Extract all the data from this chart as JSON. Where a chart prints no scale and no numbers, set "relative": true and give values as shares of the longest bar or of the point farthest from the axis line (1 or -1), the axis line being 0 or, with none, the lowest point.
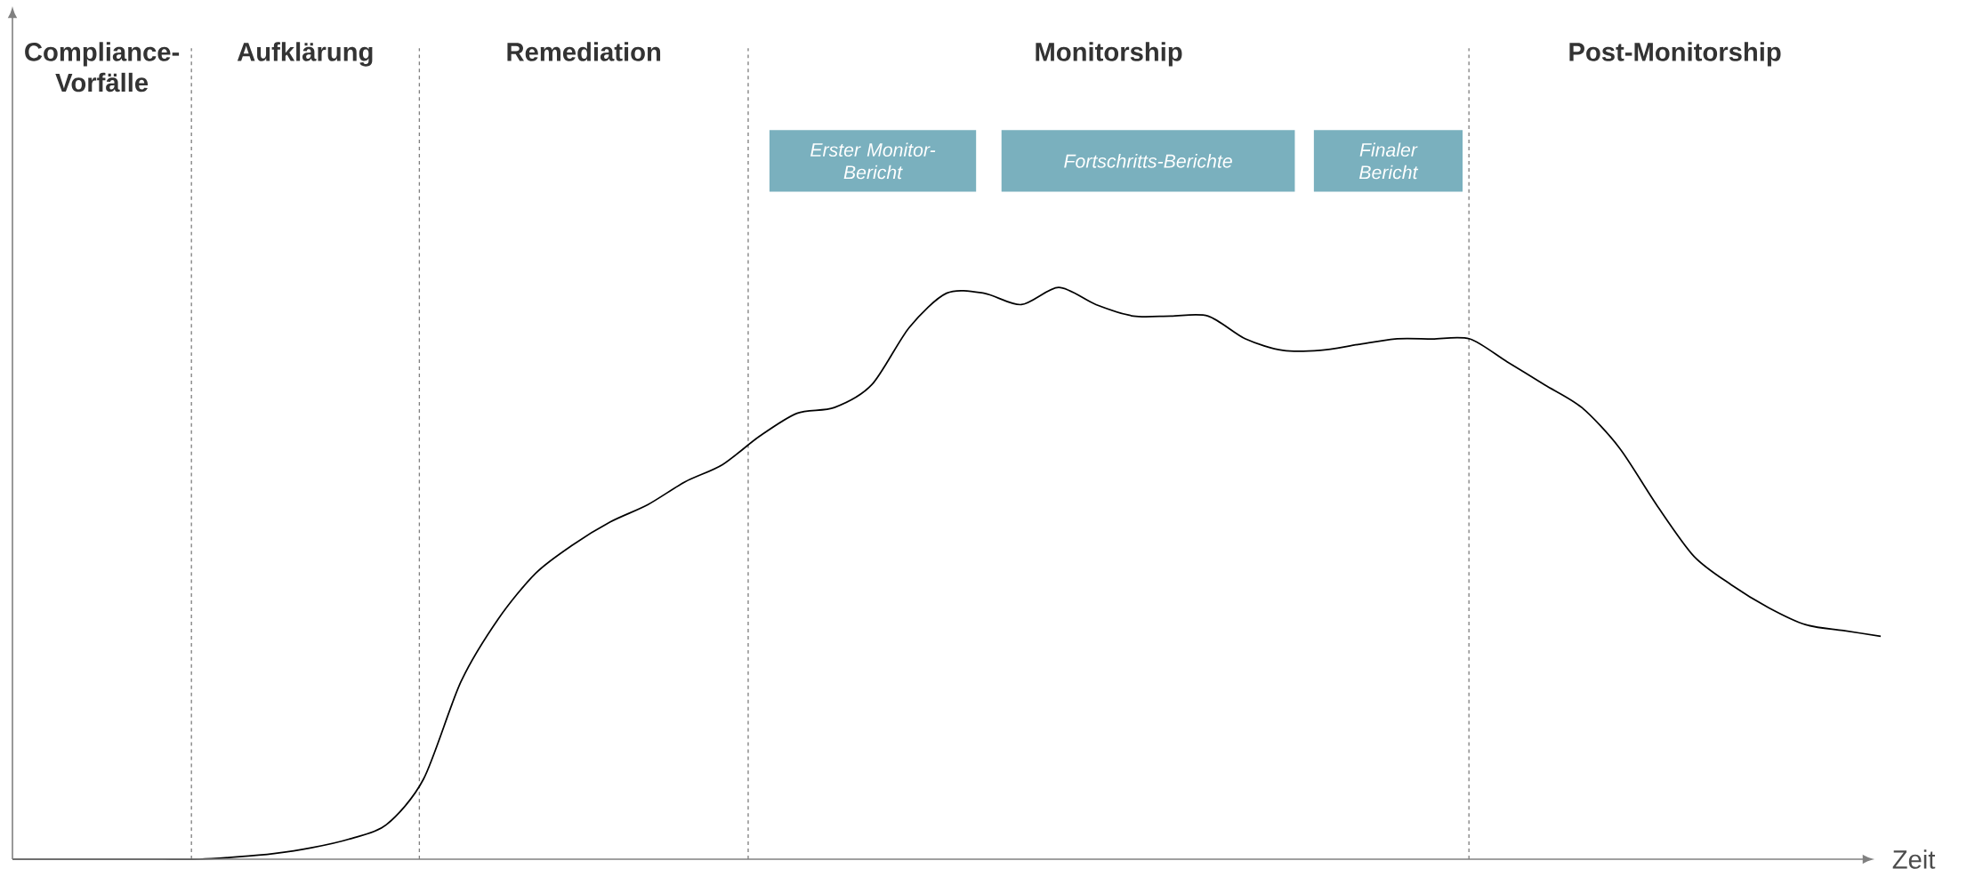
{
  "chart_data": {
    "type": "line",
    "relative": true,
    "xlabel": "Zeit",
    "categories": [
      null,
      null,
      null,
      null,
      null,
      null,
      null,
      null,
      null,
      null,
      null,
      null,
      null,
      null,
      null,
      null,
      null,
      null,
      null,
      null,
      null,
      null,
      null,
      null,
      null,
      null,
      null,
      null,
      null,
      null,
      null,
      null,
      null,
      null,
      null,
      null,
      null,
      null,
      null,
      null,
      null,
      null,
      null,
      null,
      null,
      null,
      null,
      null,
      null,
      null,
      null
    ],
    "series": [
      {
        "color": "#000000",
        "values": [
          0.0,
          0.0,
          0.0,
          0.0,
          0.0,
          0.0,
          0.004,
          0.01,
          0.02,
          0.035,
          0.06,
          0.14,
          0.31,
          0.42,
          0.5,
          0.55,
          0.59,
          0.62,
          0.66,
          0.69,
          0.74,
          0.78,
          0.79,
          0.83,
          0.93,
          0.99,
          0.99,
          0.97,
          1.0,
          0.97,
          0.95,
          0.95,
          0.95,
          0.91,
          0.89,
          0.89,
          0.9,
          0.91,
          0.91,
          0.91,
          0.87,
          0.83,
          0.79,
          0.72,
          0.62,
          0.53,
          0.48,
          0.44,
          0.41,
          0.4,
          0.39
        ]
      }
    ],
    "annotations": [
      "Compliance-Vorfälle",
      "Aufklärung",
      "Remediation",
      "Monitorship",
      "Post-Monitorship",
      "Erster Monitor-Bericht",
      "Fortschritts-Berichte",
      "Finaler Bericht"
    ],
    "marker": "none",
    "line_style": "solid"
  }
}
